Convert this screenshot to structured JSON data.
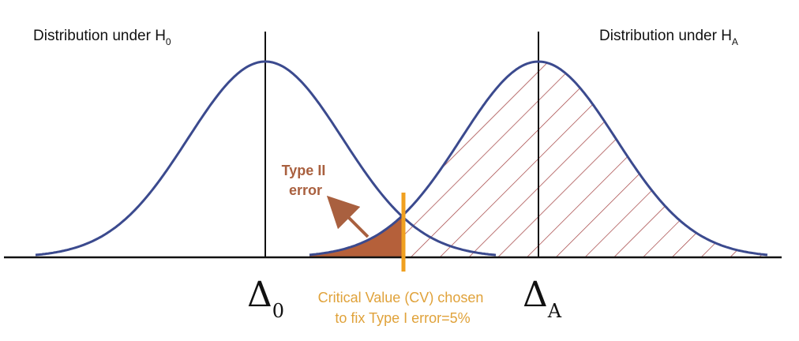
{
  "labels": {
    "h0_prefix": "Distribution under H",
    "h0_sub": "0",
    "ha_prefix": "Distribution under H",
    "ha_sub": "A",
    "delta_symbol": "Δ",
    "delta0_sub": "0",
    "deltaA_sub": "A",
    "type2_line1": "Type II",
    "type2_line2": "error",
    "cv_line1": "Critical Value (CV) chosen",
    "cv_line2": "to fix Type I error=5%"
  },
  "colors": {
    "curve": "#3b4a8e",
    "axis": "#111111",
    "type2_fill": "#b5603a",
    "hatch": "#a03a3a",
    "critical_line": "#f0a020",
    "type2_text": "#a9603f",
    "cv_text": "#e0a23a"
  }
}
